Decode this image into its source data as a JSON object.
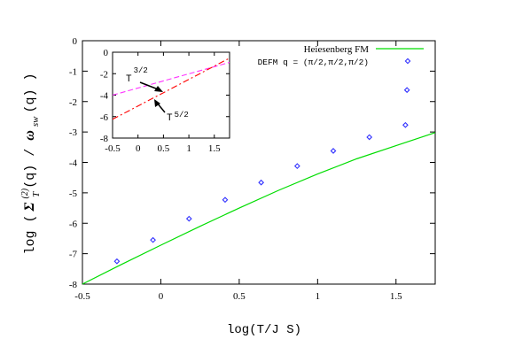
{
  "chart_data": {
    "type": "scatter",
    "xlabel": "log(T/J S)",
    "ylabel": {
      "prefix": "log (",
      "sym": "Σ",
      "sup": "(2)",
      "sub": "T",
      "mid": "(q) / ",
      "omega": "ω",
      "omega_sub": "sw",
      "suffix": "(q) )"
    },
    "xlim": [
      -0.5,
      1.75
    ],
    "ylim": [
      -8,
      0
    ],
    "xticks": [
      "-0.5",
      "0",
      "0.5",
      "1",
      "1.5"
    ],
    "yticks": [
      "-8",
      "-7",
      "-6",
      "-5",
      "-4",
      "-3",
      "-2",
      "-1",
      "0"
    ],
    "legend_position": "top-right",
    "series": [
      {
        "name": "Heiesenberg FM",
        "kind": "line",
        "color": "#00dd00",
        "x": [
          -0.5,
          -0.25,
          0.0,
          0.25,
          0.5,
          0.75,
          1.0,
          1.25,
          1.5,
          1.75
        ],
        "y": [
          -8.0,
          -7.35,
          -6.72,
          -6.1,
          -5.5,
          -4.92,
          -4.38,
          -3.88,
          -3.45,
          -3.02
        ]
      },
      {
        "name": "DEFM q = (π/2,π/2,π/2)",
        "kind": "points",
        "color": "#3333ff",
        "x": [
          -0.28,
          -0.05,
          0.18,
          0.41,
          0.64,
          0.87,
          1.1,
          1.33,
          1.56,
          1.57
        ],
        "y": [
          -7.25,
          -6.55,
          -5.85,
          -5.23,
          -4.66,
          -4.12,
          -3.62,
          -3.17,
          -2.77,
          -1.62
        ]
      }
    ],
    "inset": {
      "xlim": [
        -0.5,
        1.8
      ],
      "ylim": [
        -8,
        0
      ],
      "xticks": [
        "-0.5",
        "0",
        "0.5",
        "1",
        "1.5"
      ],
      "yticks": [
        "-8",
        "-6",
        "-4",
        "-2",
        "0"
      ],
      "series": [
        {
          "name": "T^3/2",
          "color": "#ff33ff",
          "dash": "dashed",
          "x": [
            -0.5,
            1.8
          ],
          "y": [
            -4.0,
            -0.95
          ]
        },
        {
          "name": "T^5/2",
          "color": "#ff0000",
          "dash": "dashdot",
          "x": [
            -0.5,
            1.8
          ],
          "y": [
            -6.25,
            -0.55
          ]
        }
      ],
      "annotations": [
        {
          "base": "T",
          "exp": "3/2"
        },
        {
          "base": "T",
          "exp": "5/2"
        }
      ]
    }
  }
}
